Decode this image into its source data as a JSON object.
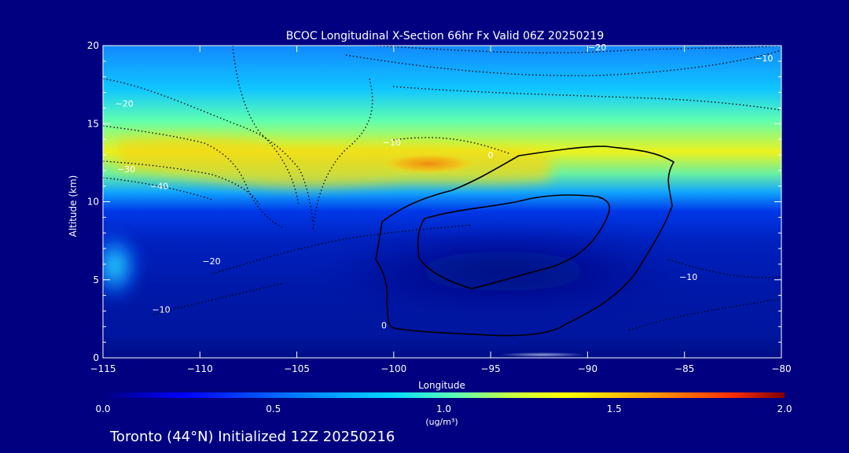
{
  "page": {
    "background": "#000080",
    "footer": "Toronto (44°N) Initialized 12Z 20250216"
  },
  "chart_data": {
    "type": "heatmap",
    "title": "BCOC Longitudinal X-Section 66hr  Fx Valid 06Z 20250219",
    "xlabel": "Longitude",
    "ylabel": "Altitude (km)",
    "xlim": [
      -115,
      -80
    ],
    "ylim": [
      0,
      20
    ],
    "x_ticks": [
      -115,
      -110,
      -105,
      -100,
      -95,
      -90,
      -85,
      -80
    ],
    "y_ticks": [
      0,
      5,
      10,
      15,
      20
    ],
    "x_tick_labels": [
      "−115",
      "−110",
      "−105",
      "−100",
      "−95",
      "−90",
      "−85",
      "−80"
    ],
    "y_tick_labels": [
      "0",
      "5",
      "10",
      "15",
      "20"
    ],
    "colorbar": {
      "range": [
        0.0,
        2.0
      ],
      "ticks": [
        0.0,
        0.5,
        1.0,
        1.5,
        2.0
      ],
      "tick_labels": [
        "0.0",
        "0.5",
        "1.0",
        "1.5",
        "2.0"
      ],
      "unit_label": "(ug/m³)",
      "colors": [
        "#000080",
        "#0000ff",
        "#0070ff",
        "#00c8ff",
        "#30ffd0",
        "#a0ff60",
        "#ffff00",
        "#ffa000",
        "#ff3000",
        "#800000"
      ]
    },
    "concentration_bands": [
      {
        "name": "upper layer",
        "lon_min": -115,
        "lon_max": -80,
        "alt_min": 9,
        "alt_max": 20,
        "value": 0.7
      },
      {
        "name": "plume",
        "lon_min": -111,
        "lon_max": -96,
        "alt_min": 11.5,
        "alt_max": 14,
        "value": 1.3
      },
      {
        "name": "core",
        "lon_min": -100,
        "lon_max": -96,
        "alt_min": 12,
        "alt_max": 13,
        "value": 1.5
      },
      {
        "name": "west surface source",
        "lon_min": -115,
        "lon_max": -113,
        "alt_min": 4,
        "alt_max": 8,
        "value": 0.8
      },
      {
        "name": "lower layer",
        "lon_min": -115,
        "lon_max": -80,
        "alt_min": 0,
        "alt_max": 9,
        "value": 0.2
      }
    ],
    "temperature_contour_labels": [
      {
        "text": "−20",
        "lon": -89.5,
        "alt": 19.7
      },
      {
        "text": "−10",
        "lon": -80.9,
        "alt": 19.0
      },
      {
        "text": "−20",
        "lon": -113.9,
        "alt": 16.1
      },
      {
        "text": "−10",
        "lon": -100.1,
        "alt": 13.6
      },
      {
        "text": "0",
        "lon": -95.0,
        "alt": 12.8
      },
      {
        "text": "−30",
        "lon": -113.8,
        "alt": 11.9
      },
      {
        "text": "−40",
        "lon": -112.1,
        "alt": 10.8
      },
      {
        "text": "−20",
        "lon": -109.4,
        "alt": 6.0
      },
      {
        "text": "−10",
        "lon": -112.0,
        "alt": 2.9
      },
      {
        "text": "−10",
        "lon": -84.8,
        "alt": 5.0
      },
      {
        "text": "0",
        "lon": -100.5,
        "alt": 1.9
      }
    ]
  }
}
